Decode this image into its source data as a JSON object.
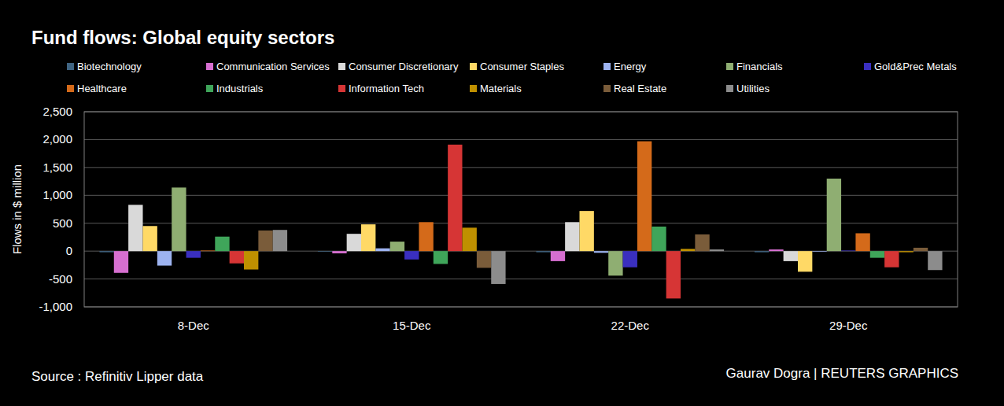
{
  "chart_data": {
    "type": "bar",
    "title": "Fund flows: Global equity sectors",
    "y_label": "Flows in $ million",
    "source": "Source : Refinitiv Lipper data",
    "credit": "Gaurav Dogra | REUTERS GRAPHICS",
    "categories": [
      "8-Dec",
      "15-Dec",
      "22-Dec",
      "29-Dec"
    ],
    "series": [
      {
        "name": "Biotechnology",
        "color": "#3f6482",
        "values": [
          -20,
          -10,
          -20,
          -20
        ]
      },
      {
        "name": "Communication Services",
        "color": "#d66fd0",
        "values": [
          -390,
          -40,
          -180,
          30
        ]
      },
      {
        "name": "Consumer Discretionary",
        "color": "#d9d9d9",
        "values": [
          830,
          310,
          520,
          -180
        ]
      },
      {
        "name": "Consumer Staples",
        "color": "#ffd966",
        "values": [
          450,
          480,
          720,
          -370
        ]
      },
      {
        "name": "Energy",
        "color": "#9db3f0",
        "values": [
          -260,
          50,
          -30,
          -10
        ]
      },
      {
        "name": "Financials",
        "color": "#8fae72",
        "values": [
          1140,
          170,
          -440,
          1300
        ]
      },
      {
        "name": "Gold&Prec Metals",
        "color": "#3a2fc0",
        "values": [
          -120,
          -150,
          -290,
          10
        ]
      },
      {
        "name": "Healthcare",
        "color": "#d46a1a",
        "values": [
          10,
          520,
          1970,
          320
        ]
      },
      {
        "name": "Industrials",
        "color": "#3fa55a",
        "values": [
          260,
          -230,
          440,
          -120
        ]
      },
      {
        "name": "Information Tech",
        "color": "#d63535",
        "values": [
          -220,
          1910,
          -850,
          -290
        ]
      },
      {
        "name": "Materials",
        "color": "#bf9000",
        "values": [
          -330,
          420,
          40,
          -20
        ]
      },
      {
        "name": "Real Estate",
        "color": "#7a5c3a",
        "values": [
          370,
          -300,
          300,
          60
        ]
      },
      {
        "name": "Utilities",
        "color": "#8c8c8c",
        "values": [
          380,
          -590,
          30,
          -340
        ]
      }
    ],
    "ylim": [
      -1000,
      2500
    ],
    "yticks": [
      {
        "value": -1000,
        "label": "-1,000"
      },
      -500,
      0,
      500,
      {
        "value": 1000,
        "label": "1,000"
      },
      {
        "value": 1500,
        "label": "1,500"
      },
      {
        "value": 2000,
        "label": "2,000"
      },
      {
        "value": 2500,
        "label": "2,500"
      }
    ],
    "grid": true,
    "legend": "top"
  }
}
